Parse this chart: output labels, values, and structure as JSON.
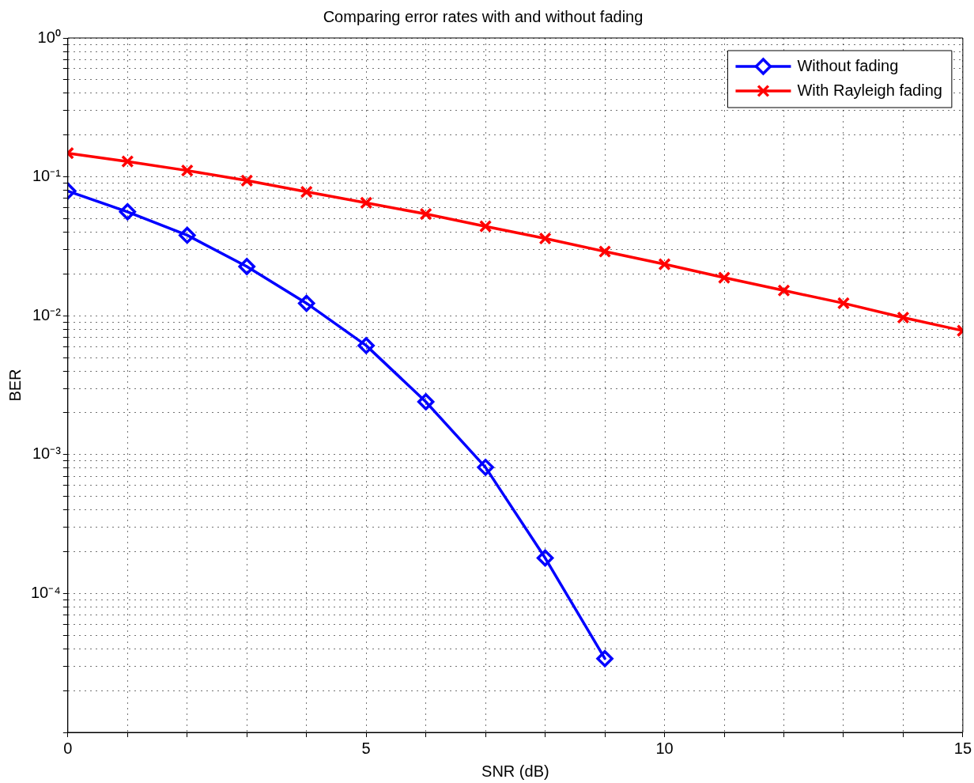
{
  "chart_data": {
    "type": "line",
    "title": "Comparing error rates with and without fading",
    "xlabel": "SNR (dB)",
    "ylabel": "BER",
    "log": "y",
    "grid": true,
    "legend": "top right",
    "line_style": "solid",
    "xlim": [
      0,
      15
    ],
    "ylim": [
      1e-05,
      1
    ],
    "xticks": [
      0,
      {
        "value": 1,
        "label": null
      },
      {
        "value": 2,
        "label": null
      },
      {
        "value": 3,
        "label": null
      },
      {
        "value": 4,
        "label": null
      },
      5,
      {
        "value": 6,
        "label": null
      },
      {
        "value": 7,
        "label": null
      },
      {
        "value": 8,
        "label": null
      },
      {
        "value": 9,
        "label": null
      },
      10,
      {
        "value": 11,
        "label": null
      },
      {
        "value": 12,
        "label": null
      },
      {
        "value": 13,
        "label": null
      },
      {
        "value": 14,
        "label": null
      },
      15
    ],
    "yticks": [
      {
        "value": 1e-05,
        "label": null
      },
      {
        "value": 2e-05,
        "label": null
      },
      {
        "value": 3e-05,
        "label": null
      },
      {
        "value": 4e-05,
        "label": null
      },
      {
        "value": 5e-05,
        "label": null
      },
      {
        "value": 6e-05,
        "label": null
      },
      {
        "value": 7e-05,
        "label": null
      },
      {
        "value": 8e-05,
        "label": null
      },
      {
        "value": 9e-05,
        "label": null
      },
      {
        "value": 0.0001,
        "label": "10⁻⁴"
      },
      {
        "value": 0.0002,
        "label": null
      },
      {
        "value": 0.0003,
        "label": null
      },
      {
        "value": 0.0004,
        "label": null
      },
      {
        "value": 0.0005,
        "label": null
      },
      {
        "value": 0.0006,
        "label": null
      },
      {
        "value": 0.0007,
        "label": null
      },
      {
        "value": 0.0008,
        "label": null
      },
      {
        "value": 0.0009,
        "label": null
      },
      {
        "value": 0.001,
        "label": "10⁻³"
      },
      {
        "value": 0.002,
        "label": null
      },
      {
        "value": 0.003,
        "label": null
      },
      {
        "value": 0.004,
        "label": null
      },
      {
        "value": 0.005,
        "label": null
      },
      {
        "value": 0.006,
        "label": null
      },
      {
        "value": 0.007,
        "label": null
      },
      {
        "value": 0.008,
        "label": null
      },
      {
        "value": 0.009,
        "label": null
      },
      {
        "value": 0.01,
        "label": "10⁻²"
      },
      {
        "value": 0.02,
        "label": null
      },
      {
        "value": 0.03,
        "label": null
      },
      {
        "value": 0.04,
        "label": null
      },
      {
        "value": 0.05,
        "label": null
      },
      {
        "value": 0.06,
        "label": null
      },
      {
        "value": 0.07,
        "label": null
      },
      {
        "value": 0.08,
        "label": null
      },
      {
        "value": 0.09,
        "label": null
      },
      {
        "value": 0.1,
        "label": "10⁻¹"
      },
      {
        "value": 0.2,
        "label": null
      },
      {
        "value": 0.3,
        "label": null
      },
      {
        "value": 0.4,
        "label": null
      },
      {
        "value": 0.5,
        "label": null
      },
      {
        "value": 0.6,
        "label": null
      },
      {
        "value": 0.7,
        "label": null
      },
      {
        "value": 0.8,
        "label": null
      },
      {
        "value": 0.9,
        "label": null
      },
      {
        "value": 1,
        "label": "10⁰"
      }
    ],
    "series": [
      {
        "name": "Without fading",
        "color": "#0000ff",
        "marker": "diamond",
        "x": [
          0,
          1,
          2,
          3,
          4,
          5,
          6,
          7,
          8,
          9
        ],
        "values": [
          0.079,
          0.056,
          0.038,
          0.0226,
          0.0123,
          0.0061,
          0.0024,
          0.00081,
          0.00018,
          3.4e-05
        ]
      },
      {
        "name": "With Rayleigh fading",
        "color": "#ff0000",
        "marker": "cross",
        "x": [
          0,
          1,
          2,
          3,
          4,
          5,
          6,
          7,
          8,
          9,
          10,
          11,
          12,
          13,
          14,
          15
        ],
        "values": [
          0.148,
          0.129,
          0.111,
          0.094,
          0.078,
          0.065,
          0.054,
          0.044,
          0.036,
          0.029,
          0.0235,
          0.0188,
          0.0152,
          0.0123,
          0.0097,
          0.0078
        ]
      }
    ]
  }
}
